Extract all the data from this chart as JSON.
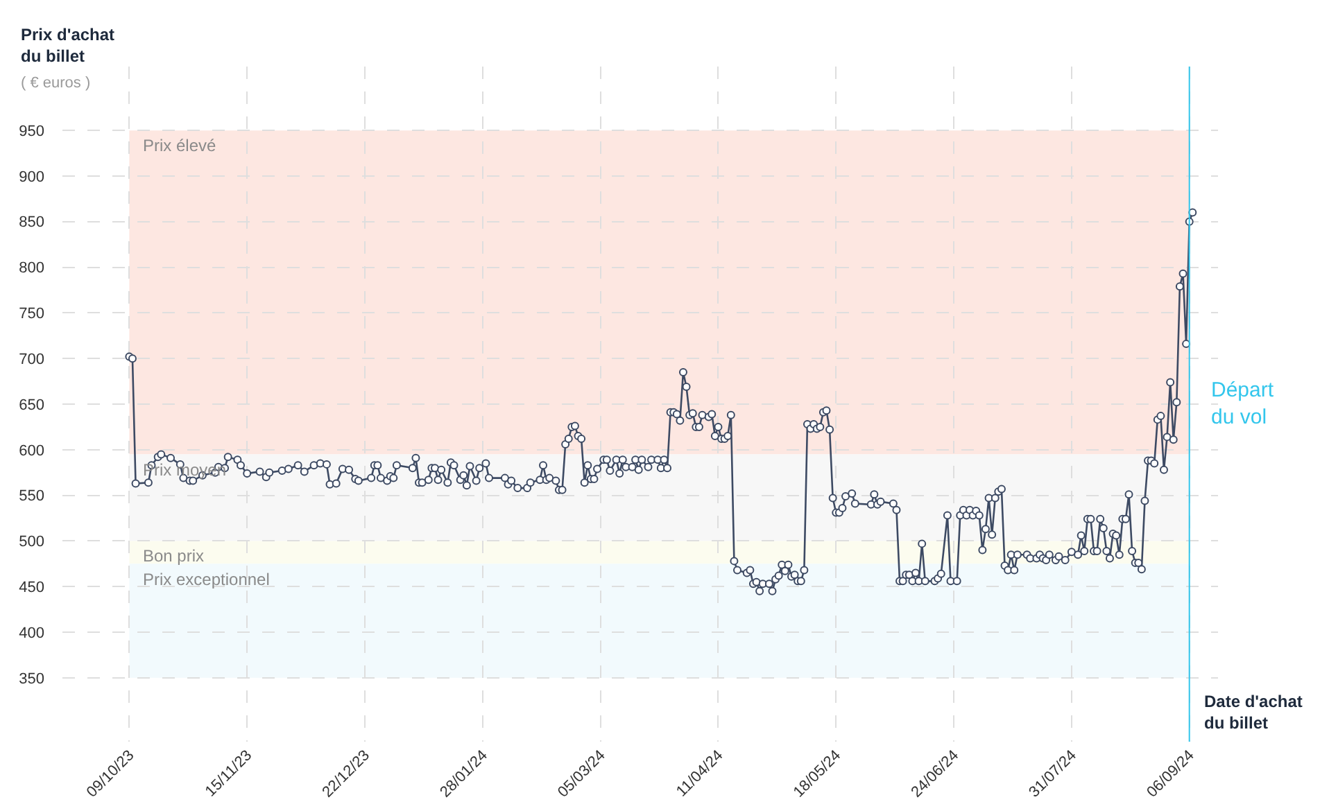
{
  "chart_data": {
    "type": "line",
    "ylabel": "Prix d'achat du billet",
    "xlabel": "Date d'achat du billet",
    "annotations": [
      "( € euros )"
    ],
    "x": [
      "2023-10-09",
      "2023-10-10",
      "2023-10-11",
      "2023-10-15",
      "2023-10-16",
      "2023-10-18",
      "2023-10-19",
      "2023-10-22",
      "2023-10-25",
      "2023-10-26",
      "2023-10-28",
      "2023-10-29",
      "2023-11-01",
      "2023-11-05",
      "2023-11-06",
      "2023-11-08",
      "2023-11-09",
      "2023-11-12",
      "2023-11-13",
      "2023-11-15",
      "2023-11-19",
      "2023-11-21",
      "2023-11-22",
      "2023-11-26",
      "2023-11-28",
      "2023-12-01",
      "2023-12-03",
      "2023-12-06",
      "2023-12-08",
      "2023-12-10",
      "2023-12-11",
      "2023-12-13",
      "2023-12-15",
      "2023-12-17",
      "2023-12-19",
      "2023-12-20",
      "2023-12-24",
      "2023-12-25",
      "2023-12-26",
      "2023-12-27",
      "2023-12-29",
      "2023-12-30",
      "2023-12-31",
      "2024-01-01",
      "2024-01-06",
      "2024-01-07",
      "2024-01-08",
      "2024-01-09",
      "2024-01-11",
      "2024-01-12",
      "2024-01-13",
      "2024-01-14",
      "2024-01-15",
      "2024-01-17",
      "2024-01-18",
      "2024-01-19",
      "2024-01-21",
      "2024-01-22",
      "2024-01-23",
      "2024-01-24",
      "2024-01-26",
      "2024-01-27",
      "2024-01-29",
      "2024-01-30",
      "2024-02-04",
      "2024-02-05",
      "2024-02-06",
      "2024-02-08",
      "2024-02-11",
      "2024-02-12",
      "2024-02-15",
      "2024-02-16",
      "2024-02-17",
      "2024-02-18",
      "2024-02-20",
      "2024-02-21",
      "2024-02-22",
      "2024-02-23",
      "2024-02-24",
      "2024-02-25",
      "2024-02-26",
      "2024-02-27",
      "2024-02-28",
      "2024-02-29",
      "2024-03-01",
      "2024-03-02",
      "2024-03-03",
      "2024-03-04",
      "2024-03-06",
      "2024-03-07",
      "2024-03-08",
      "2024-03-10",
      "2024-03-11",
      "2024-03-12",
      "2024-03-13",
      "2024-03-15",
      "2024-03-16",
      "2024-03-17",
      "2024-03-18",
      "2024-03-20",
      "2024-03-21",
      "2024-03-23",
      "2024-03-24",
      "2024-03-25",
      "2024-03-26",
      "2024-03-27",
      "2024-03-28",
      "2024-03-29",
      "2024-03-30",
      "2024-03-31",
      "2024-04-01",
      "2024-04-02",
      "2024-04-03",
      "2024-04-04",
      "2024-04-05",
      "2024-04-06",
      "2024-04-08",
      "2024-04-09",
      "2024-04-10",
      "2024-04-11",
      "2024-04-12",
      "2024-04-13",
      "2024-04-14",
      "2024-04-15",
      "2024-04-16",
      "2024-04-17",
      "2024-04-20",
      "2024-04-21",
      "2024-04-22",
      "2024-04-23",
      "2024-04-24",
      "2024-04-25",
      "2024-04-27",
      "2024-04-28",
      "2024-04-29",
      "2024-04-30",
      "2024-05-01",
      "2024-05-02",
      "2024-05-03",
      "2024-05-04",
      "2024-05-05",
      "2024-05-06",
      "2024-05-07",
      "2024-05-08",
      "2024-05-09",
      "2024-05-10",
      "2024-05-11",
      "2024-05-12",
      "2024-05-13",
      "2024-05-14",
      "2024-05-15",
      "2024-05-16",
      "2024-05-17",
      "2024-05-18",
      "2024-05-19",
      "2024-05-20",
      "2024-05-21",
      "2024-05-23",
      "2024-05-24",
      "2024-05-29",
      "2024-05-30",
      "2024-05-31",
      "2024-06-01",
      "2024-06-05",
      "2024-06-06",
      "2024-06-07",
      "2024-06-08",
      "2024-06-09",
      "2024-06-10",
      "2024-06-11",
      "2024-06-12",
      "2024-06-13",
      "2024-06-14",
      "2024-06-15",
      "2024-06-18",
      "2024-06-19",
      "2024-06-20",
      "2024-06-22",
      "2024-06-23",
      "2024-06-25",
      "2024-06-26",
      "2024-06-27",
      "2024-06-28",
      "2024-06-29",
      "2024-06-30",
      "2024-07-01",
      "2024-07-02",
      "2024-07-03",
      "2024-07-04",
      "2024-07-05",
      "2024-07-06",
      "2024-07-07",
      "2024-07-08",
      "2024-07-09",
      "2024-07-10",
      "2024-07-11",
      "2024-07-12",
      "2024-07-13",
      "2024-07-14",
      "2024-07-17",
      "2024-07-18",
      "2024-07-20",
      "2024-07-21",
      "2024-07-22",
      "2024-07-23",
      "2024-07-24",
      "2024-07-26",
      "2024-07-27",
      "2024-07-29",
      "2024-07-31",
      "2024-08-02",
      "2024-08-03",
      "2024-08-04",
      "2024-08-05",
      "2024-08-06",
      "2024-08-07",
      "2024-08-08",
      "2024-08-09",
      "2024-08-10",
      "2024-08-11",
      "2024-08-12",
      "2024-08-13",
      "2024-08-14",
      "2024-08-15",
      "2024-08-16",
      "2024-08-17",
      "2024-08-18",
      "2024-08-19",
      "2024-08-20",
      "2024-08-21",
      "2024-08-22",
      "2024-08-23",
      "2024-08-24",
      "2024-08-25",
      "2024-08-26",
      "2024-08-27",
      "2024-08-28",
      "2024-08-29",
      "2024-08-30",
      "2024-08-31",
      "2024-09-01",
      "2024-09-02",
      "2024-09-03",
      "2024-09-04",
      "2024-09-05",
      "2024-09-06",
      "2024-09-07"
    ],
    "series": [
      {
        "color": "#3d4a63",
        "values": [
          702,
          700,
          563,
          564,
          583,
          592,
          595,
          591,
          584,
          569,
          566,
          566,
          572,
          575,
          581,
          580,
          592,
          589,
          583,
          574,
          576,
          570,
          575,
          577,
          579,
          583,
          576,
          583,
          585,
          584,
          562,
          563,
          579,
          578,
          568,
          566,
          569,
          583,
          583,
          569,
          566,
          571,
          569,
          583,
          580,
          591,
          564,
          564,
          567,
          580,
          580,
          567,
          578,
          564,
          586,
          583,
          567,
          572,
          561,
          582,
          566,
          580,
          585,
          569,
          569,
          562,
          566,
          558,
          558,
          564,
          567,
          583,
          567,
          569,
          566,
          556,
          556,
          606,
          612,
          625,
          626,
          615,
          612,
          564,
          583,
          568,
          568,
          579,
          589,
          589,
          577,
          589,
          574,
          589,
          581,
          581,
          589,
          578,
          589,
          581,
          589,
          589,
          580,
          589,
          580,
          641,
          641,
          639,
          632,
          685,
          669,
          638,
          640,
          625,
          625,
          638,
          636,
          639,
          615,
          625,
          612,
          612,
          615,
          638,
          478,
          468,
          465,
          468,
          453,
          455,
          445,
          453,
          453,
          445,
          458,
          462,
          474,
          467,
          474,
          461,
          463,
          456,
          456,
          468,
          628,
          623,
          628,
          623,
          625,
          641,
          643,
          622,
          547,
          531,
          531,
          536,
          549,
          552,
          541,
          540,
          551,
          540,
          543,
          541,
          534,
          456,
          456,
          463,
          463,
          456,
          465,
          456,
          497,
          456,
          456,
          459,
          464,
          528,
          456,
          456,
          528,
          534,
          528,
          534,
          528,
          533,
          528,
          490,
          513,
          547,
          507,
          547,
          554,
          557,
          473,
          468,
          485,
          468,
          485,
          485,
          481,
          481,
          485,
          481,
          479,
          485,
          479,
          483,
          479,
          488,
          485,
          506,
          489,
          524,
          524,
          489,
          489,
          524,
          514,
          489,
          481,
          508,
          506,
          485,
          524,
          524,
          551,
          489,
          476,
          476,
          469,
          544,
          588,
          588,
          585,
          633,
          637,
          578,
          614,
          674,
          611,
          652,
          779,
          793,
          716,
          850,
          860
        ]
      }
    ],
    "xlim": [
      "2023-09-18",
      "2024-09-15"
    ],
    "xticks": [
      {
        "value": "2023-10-09",
        "label": "09/10/23"
      },
      {
        "value": "2023-11-15",
        "label": "15/11/23"
      },
      {
        "value": "2023-12-22",
        "label": "22/12/23"
      },
      {
        "value": "2024-01-28",
        "label": "28/01/24"
      },
      {
        "value": "2024-03-05",
        "label": "05/03/24"
      },
      {
        "value": "2024-04-11",
        "label": "11/04/24"
      },
      {
        "value": "2024-05-18",
        "label": "18/05/24"
      },
      {
        "value": "2024-06-24",
        "label": "24/06/24"
      },
      {
        "value": "2024-07-31",
        "label": "31/07/24"
      },
      {
        "value": "2024-09-06",
        "label": "06/09/24"
      }
    ],
    "ylim": [
      280,
      1020
    ],
    "yticks": [
      350,
      400,
      450,
      500,
      550,
      600,
      650,
      700,
      750,
      800,
      850,
      900,
      950
    ],
    "bands": [
      {
        "axis": "y",
        "from": 595,
        "to": 950,
        "label": "Prix élevé",
        "color": "#fde7e1"
      },
      {
        "axis": "y",
        "from": 500,
        "to": 595,
        "label": "Prix moyen",
        "color": "#f7f7f7"
      },
      {
        "axis": "y",
        "from": 475,
        "to": 500,
        "label": "Bon prix",
        "color": "#fcfcef"
      },
      {
        "axis": "y",
        "from": 350,
        "to": 475,
        "label": "Prix exceptionnel",
        "color": "#f2fafd"
      }
    ],
    "ref_lines": [
      {
        "axis": "x",
        "value": "2024-09-06",
        "label": "Départ du vol",
        "color": "#33c6ec"
      }
    ],
    "grid": true,
    "marker": "circle",
    "line_style": "solid"
  }
}
